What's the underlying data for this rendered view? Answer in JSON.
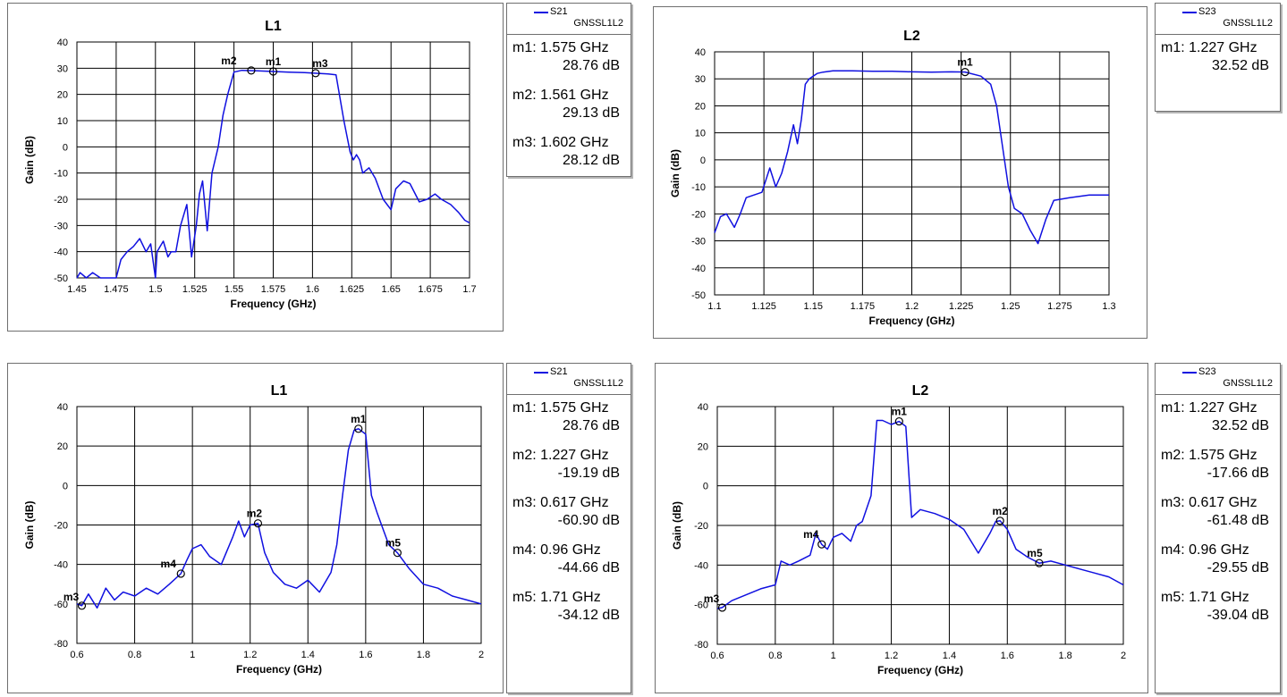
{
  "chart_data": [
    {
      "type": "line",
      "title": "L1",
      "xlabel": "Frequency (GHz)",
      "ylabel": "Gain (dB)",
      "xlim": [
        1.45,
        1.7
      ],
      "ylim": [
        -50,
        40
      ],
      "xticks": [
        "1.45",
        "1.475",
        "1.5",
        "1.525",
        "1.55",
        "1.575",
        "1.6",
        "1.625",
        "1.65",
        "1.675",
        "1.7"
      ],
      "yticks": [
        "40",
        "30",
        "20",
        "10",
        "0",
        "-10",
        "-20",
        "-30",
        "-40",
        "-50"
      ],
      "grid": true,
      "legend": {
        "name": "S21",
        "sub": "GNSSL1L2",
        "color": "#1010e0",
        "placement": "right"
      },
      "series": [
        {
          "x": [
            1.45,
            1.452,
            1.456,
            1.46,
            1.465,
            1.47,
            1.475,
            1.478,
            1.482,
            1.486,
            1.49,
            1.494,
            1.497,
            1.5,
            1.501,
            1.503,
            1.505,
            1.508,
            1.51,
            1.513,
            1.516,
            1.52,
            1.523,
            1.526,
            1.528,
            1.53,
            1.533,
            1.536,
            1.538,
            1.54,
            1.543,
            1.546,
            1.55,
            1.555,
            1.56,
            1.565,
            1.57,
            1.575,
            1.58,
            1.585,
            1.59,
            1.595,
            1.6,
            1.605,
            1.61,
            1.615,
            1.62,
            1.622,
            1.624,
            1.626,
            1.628,
            1.63,
            1.632,
            1.636,
            1.64,
            1.645,
            1.65,
            1.653,
            1.658,
            1.662,
            1.668,
            1.673,
            1.678,
            1.682,
            1.688,
            1.693,
            1.697,
            1.7
          ],
          "y": [
            -50,
            -48,
            -50,
            -48,
            -50,
            -50,
            -50,
            -43,
            -40,
            -38,
            -35,
            -40,
            -37,
            -50,
            -40,
            -38,
            -36,
            -42,
            -40,
            -40,
            -30,
            -22,
            -42,
            -30,
            -18,
            -13,
            -32,
            -10,
            -5,
            0,
            12,
            20,
            28.5,
            29.2,
            29.1,
            29.0,
            28.9,
            28.76,
            28.6,
            28.5,
            28.4,
            28.3,
            28.12,
            28.0,
            27.8,
            27.5,
            10,
            4,
            -2,
            -5,
            -3,
            -5,
            -10,
            -8,
            -12,
            -20,
            -24,
            -16,
            -13,
            -14,
            -21,
            -20,
            -18,
            -20,
            -22,
            -25,
            -28,
            -29
          ]
        }
      ],
      "markers": [
        {
          "label": "m1",
          "x": 1.575,
          "y": 28.76,
          "freq_text": "m1: 1.575 GHz",
          "gain_text": "28.76 dB"
        },
        {
          "label": "m2",
          "x": 1.561,
          "y": 29.13,
          "freq_text": "m2: 1.561 GHz",
          "gain_text": "29.13 dB"
        },
        {
          "label": "m3",
          "x": 1.602,
          "y": 28.12,
          "freq_text": "m3: 1.602 GHz",
          "gain_text": "28.12 dB"
        }
      ]
    },
    {
      "type": "line",
      "title": "L2",
      "xlabel": "Frequency (GHz)",
      "ylabel": "Gain (dB)",
      "xlim": [
        1.1,
        1.3
      ],
      "ylim": [
        -50,
        40
      ],
      "xticks": [
        "1.1",
        "1.125",
        "1.15",
        "1.175",
        "1.2",
        "1.225",
        "1.25",
        "1.275",
        "1.3"
      ],
      "yticks": [
        "40",
        "30",
        "20",
        "10",
        "0",
        "-10",
        "-20",
        "-30",
        "-40",
        "-50"
      ],
      "grid": true,
      "legend": {
        "name": "S23",
        "sub": "GNSSL1L2",
        "color": "#1010e0",
        "placement": "right"
      },
      "series": [
        {
          "x": [
            1.1,
            1.103,
            1.106,
            1.11,
            1.113,
            1.116,
            1.12,
            1.124,
            1.128,
            1.131,
            1.134,
            1.137,
            1.14,
            1.142,
            1.144,
            1.146,
            1.148,
            1.15,
            1.152,
            1.155,
            1.16,
            1.17,
            1.18,
            1.19,
            1.2,
            1.21,
            1.22,
            1.227,
            1.235,
            1.24,
            1.243,
            1.246,
            1.249,
            1.252,
            1.256,
            1.26,
            1.264,
            1.268,
            1.272,
            1.28,
            1.29,
            1.3
          ],
          "y": [
            -27,
            -21,
            -20,
            -25,
            -20,
            -14,
            -13,
            -12,
            -3,
            -10,
            -5,
            3,
            13,
            6,
            15,
            28,
            30,
            31,
            32,
            32.5,
            33,
            33,
            32.8,
            32.8,
            32.6,
            32.5,
            32.6,
            32.52,
            31,
            28,
            20,
            5,
            -10,
            -18,
            -20,
            -26,
            -31,
            -22,
            -15,
            -14,
            -13,
            -13
          ]
        }
      ],
      "markers": [
        {
          "label": "m1",
          "x": 1.227,
          "y": 32.52,
          "freq_text": "m1: 1.227 GHz",
          "gain_text": "32.52 dB"
        }
      ]
    },
    {
      "type": "line",
      "title": "L1",
      "xlabel": "Frequency (GHz)",
      "ylabel": "Gain (dB)",
      "xlim": [
        0.6,
        2.0
      ],
      "ylim": [
        -80,
        40
      ],
      "xticks": [
        "0.6",
        "0.8",
        "1",
        "1.2",
        "1.4",
        "1.6",
        "1.8",
        "2"
      ],
      "yticks": [
        "40",
        "20",
        "0",
        "-20",
        "-40",
        "-60",
        "-80"
      ],
      "grid": true,
      "legend": {
        "name": "S21",
        "sub": "GNSSL1L2",
        "color": "#1010e0",
        "placement": "right"
      },
      "series": [
        {
          "x": [
            0.6,
            0.617,
            0.64,
            0.67,
            0.7,
            0.73,
            0.76,
            0.8,
            0.84,
            0.88,
            0.92,
            0.96,
            0.98,
            1.0,
            1.03,
            1.06,
            1.1,
            1.14,
            1.16,
            1.18,
            1.2,
            1.227,
            1.25,
            1.28,
            1.32,
            1.36,
            1.4,
            1.44,
            1.48,
            1.5,
            1.52,
            1.54,
            1.56,
            1.575,
            1.6,
            1.62,
            1.64,
            1.66,
            1.68,
            1.71,
            1.75,
            1.8,
            1.85,
            1.9,
            1.95,
            2.0
          ],
          "y": [
            -60,
            -60.9,
            -55,
            -62,
            -52,
            -58,
            -54,
            -56,
            -52,
            -55,
            -50,
            -44.66,
            -38,
            -32,
            -30,
            -36,
            -40,
            -26,
            -18,
            -26,
            -20,
            -19.19,
            -34,
            -44,
            -50,
            -52,
            -48,
            -54,
            -44,
            -30,
            -5,
            18,
            28,
            28.76,
            26,
            -5,
            -14,
            -22,
            -30,
            -34.12,
            -42,
            -50,
            -52,
            -56,
            -58,
            -60
          ]
        }
      ],
      "markers": [
        {
          "label": "m1",
          "x": 1.575,
          "y": 28.76,
          "freq_text": "m1: 1.575 GHz",
          "gain_text": "28.76 dB"
        },
        {
          "label": "m2",
          "x": 1.227,
          "y": -19.19,
          "freq_text": "m2: 1.227 GHz",
          "gain_text": "-19.19 dB"
        },
        {
          "label": "m3",
          "x": 0.617,
          "y": -60.9,
          "freq_text": "m3: 0.617 GHz",
          "gain_text": "-60.90 dB"
        },
        {
          "label": "m4",
          "x": 0.96,
          "y": -44.66,
          "freq_text": "m4: 0.96 GHz",
          "gain_text": "-44.66 dB"
        },
        {
          "label": "m5",
          "x": 1.71,
          "y": -34.12,
          "freq_text": "m5: 1.71 GHz",
          "gain_text": "-34.12 dB"
        }
      ]
    },
    {
      "type": "line",
      "title": "L2",
      "xlabel": "Frequency (GHz)",
      "ylabel": "Gain (dB)",
      "xlim": [
        0.6,
        2.0
      ],
      "ylim": [
        -80,
        40
      ],
      "xticks": [
        "0.6",
        "0.8",
        "1",
        "1.2",
        "1.4",
        "1.6",
        "1.8",
        "2"
      ],
      "yticks": [
        "40",
        "20",
        "0",
        "-20",
        "-40",
        "-60",
        "-80"
      ],
      "grid": true,
      "legend": {
        "name": "S23",
        "sub": "GNSSL1L2",
        "color": "#1010e0",
        "placement": "right"
      },
      "series": [
        {
          "x": [
            0.6,
            0.617,
            0.65,
            0.7,
            0.75,
            0.8,
            0.82,
            0.85,
            0.88,
            0.92,
            0.94,
            0.96,
            0.98,
            1.0,
            1.03,
            1.06,
            1.08,
            1.1,
            1.13,
            1.15,
            1.17,
            1.2,
            1.227,
            1.25,
            1.27,
            1.3,
            1.35,
            1.4,
            1.45,
            1.5,
            1.54,
            1.56,
            1.575,
            1.6,
            1.63,
            1.67,
            1.71,
            1.75,
            1.8,
            1.85,
            1.9,
            1.95,
            2.0
          ],
          "y": [
            -62,
            -61.48,
            -58,
            -55,
            -52,
            -50,
            -38,
            -40,
            -38,
            -35,
            -24,
            -29.55,
            -32,
            -26,
            -24,
            -28,
            -20,
            -18,
            -5,
            33,
            33,
            31,
            32.52,
            30,
            -16,
            -12,
            -14,
            -17,
            -22,
            -34,
            -24,
            -18,
            -17.66,
            -22,
            -32,
            -36,
            -39.04,
            -38,
            -40,
            -42,
            -44,
            -46,
            -50
          ]
        }
      ],
      "markers": [
        {
          "label": "m1",
          "x": 1.227,
          "y": 32.52,
          "freq_text": "m1: 1.227 GHz",
          "gain_text": "32.52 dB"
        },
        {
          "label": "m2",
          "x": 1.575,
          "y": -17.66,
          "freq_text": "m2: 1.575 GHz",
          "gain_text": "-17.66 dB"
        },
        {
          "label": "m3",
          "x": 0.617,
          "y": -61.48,
          "freq_text": "m3: 0.617 GHz",
          "gain_text": "-61.48 dB"
        },
        {
          "label": "m4",
          "x": 0.96,
          "y": -29.55,
          "freq_text": "m4: 0.96 GHz",
          "gain_text": "-29.55 dB"
        },
        {
          "label": "m5",
          "x": 1.71,
          "y": -39.04,
          "freq_text": "m5: 1.71 GHz",
          "gain_text": "-39.04 dB"
        }
      ]
    }
  ]
}
